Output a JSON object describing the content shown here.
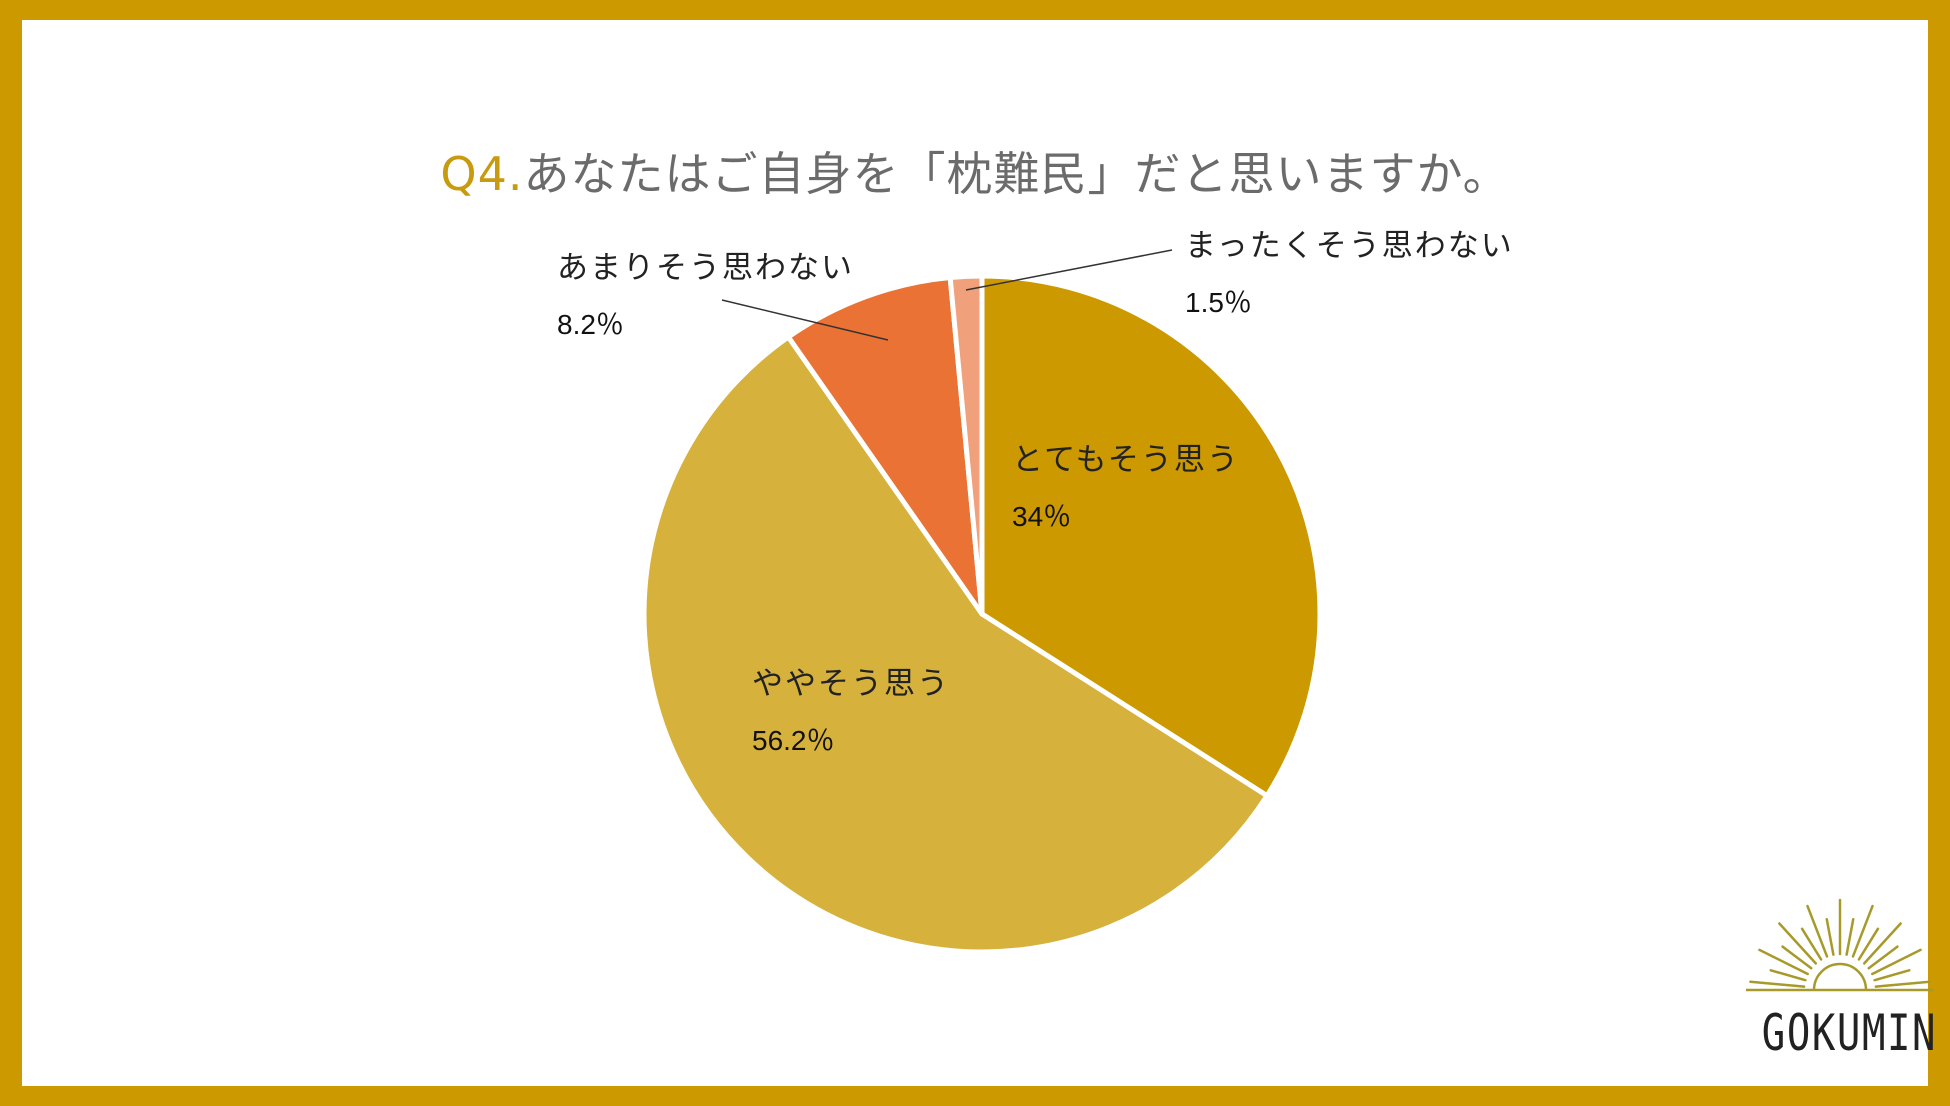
{
  "title": {
    "number": "Q4.",
    "question": "あなたはご自身を「枕難民」だと思いますか。"
  },
  "chart_data": {
    "type": "pie",
    "slices": [
      {
        "label": "とてもそう思う",
        "value": 34,
        "value_label": "34％",
        "color": "#cc9900"
      },
      {
        "label": "ややそう思う",
        "value": 56.2,
        "value_label": "56.2％",
        "color": "#d6b13c"
      },
      {
        "label": "あまりそう思わない",
        "value": 8.2,
        "value_label": "8.2％",
        "color": "#e97234"
      },
      {
        "label": "まったくそう思わない",
        "value": 1.5,
        "value_label": "1.5％",
        "color": "#f0a07a"
      }
    ]
  },
  "logo": {
    "text": "GOKUMIN",
    "color": "#a89a2a"
  }
}
